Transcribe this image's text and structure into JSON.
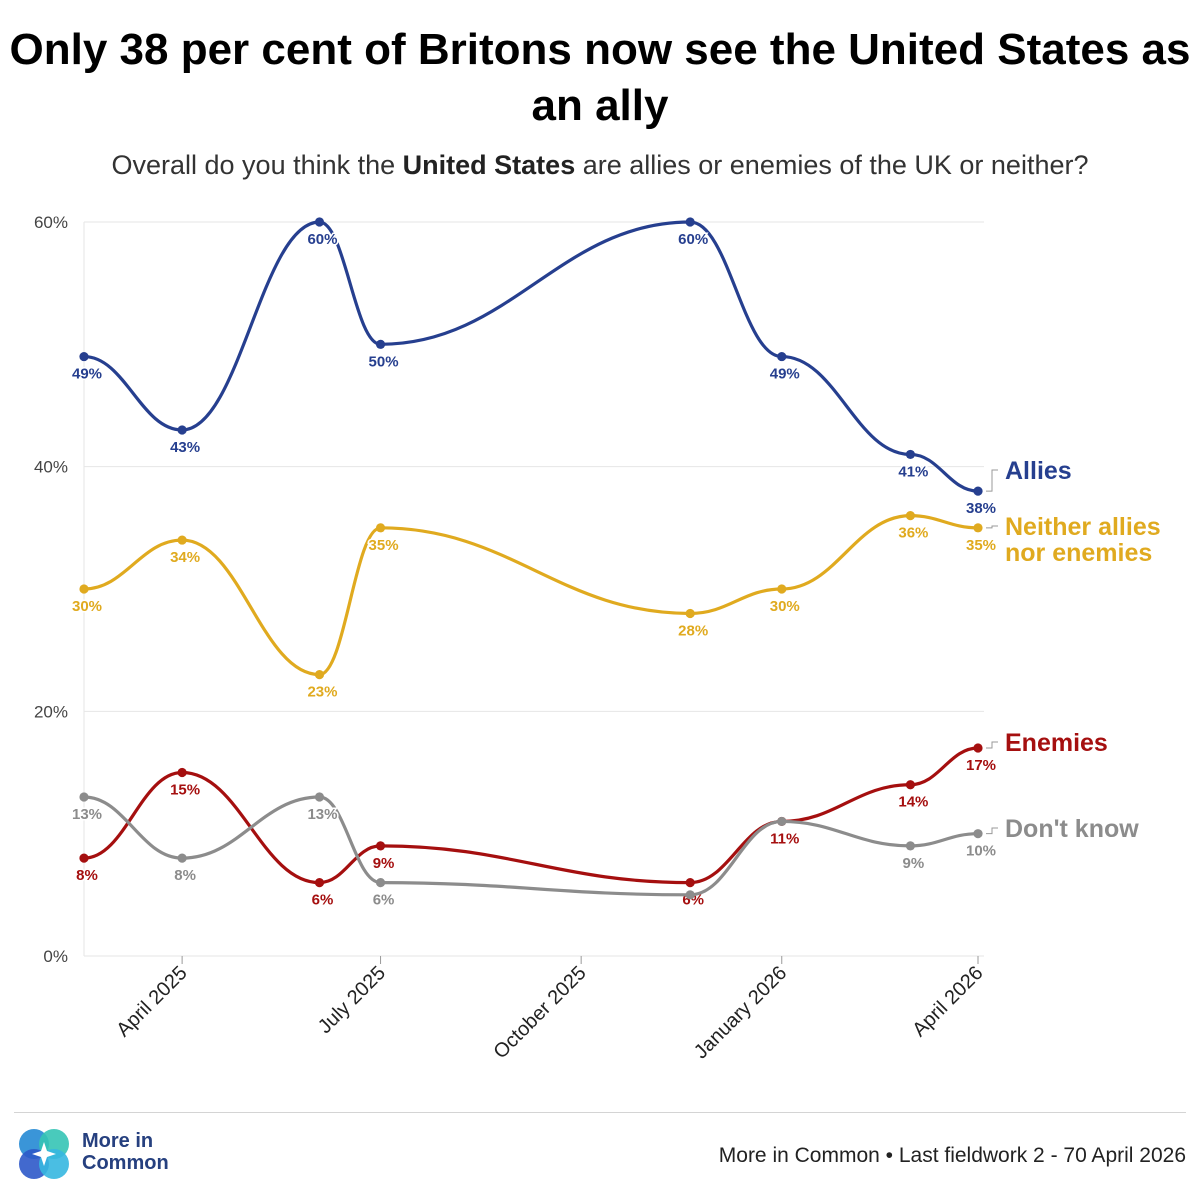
{
  "title": "Only 38 per cent of Britons now see the United States as an ally",
  "subtitle": {
    "before": "Overall do you think the ",
    "bold": "United States",
    "after": " are allies or enemies of the UK or neither?"
  },
  "chart_data": {
    "type": "line",
    "title": "Only 38 per cent of Britons now see the United States as an ally",
    "xlabel": "",
    "ylabel": "",
    "ylim": [
      0,
      60
    ],
    "yticks": [
      0,
      20,
      40,
      60
    ],
    "ytick_labels": [
      "0%",
      "20%",
      "40%",
      "60%"
    ],
    "grid": true,
    "x_tick_labels": [
      "April 2025",
      "July 2025",
      "October 2025",
      "January 2026",
      "April 2026"
    ],
    "x_tick_dates": [
      "2025-04-01",
      "2025-07-01",
      "2025-10-01",
      "2026-01-01",
      "2026-04-01"
    ],
    "x": [
      "2025-02-15",
      "2025-04-01",
      "2025-06-03",
      "2025-07-01",
      "2025-11-20",
      "2026-01-01",
      "2026-03-01",
      "2026-04-01"
    ],
    "series": [
      {
        "name": "Allies",
        "color": "#263f8f",
        "values": [
          49,
          43,
          60,
          50,
          60,
          49,
          41,
          38
        ],
        "labels": [
          "49%",
          "43%",
          "60%",
          "50%",
          "60%",
          "49%",
          "41%",
          "38%"
        ]
      },
      {
        "name": "Neither allies nor enemies",
        "color": "#e0aa1f",
        "values": [
          30,
          34,
          23,
          35,
          28,
          30,
          36,
          35
        ],
        "labels": [
          "30%",
          "34%",
          "23%",
          "35%",
          "28%",
          "30%",
          "36%",
          "35%"
        ]
      },
      {
        "name": "Enemies",
        "color": "#a50f0f",
        "values": [
          8,
          15,
          6,
          9,
          6,
          11,
          14,
          17
        ],
        "labels": [
          "8%",
          "15%",
          "6%",
          "9%",
          "6%",
          "11%",
          "14%",
          "17%"
        ]
      },
      {
        "name": "Don't know",
        "color": "#8c8c8c",
        "values": [
          13,
          8,
          13,
          6,
          5,
          11,
          9,
          10
        ],
        "labels": [
          "13%",
          "8%",
          "13%",
          "6%",
          "",
          "",
          "9%",
          "10%"
        ]
      }
    ],
    "legend": [
      {
        "line1": "Allies",
        "line2": "",
        "color": "#263f8f"
      },
      {
        "line1": "Neither allies",
        "line2": "nor enemies",
        "color": "#e0aa1f"
      },
      {
        "line1": "Enemies",
        "line2": "",
        "color": "#a50f0f"
      },
      {
        "line1": "Don't know",
        "line2": "",
        "color": "#8c8c8c"
      }
    ]
  },
  "footer": {
    "logo_text_line1": "More in",
    "logo_text_line2": "Common",
    "source": "More in Common • Last fieldwork 2 - 70 April 2026"
  }
}
